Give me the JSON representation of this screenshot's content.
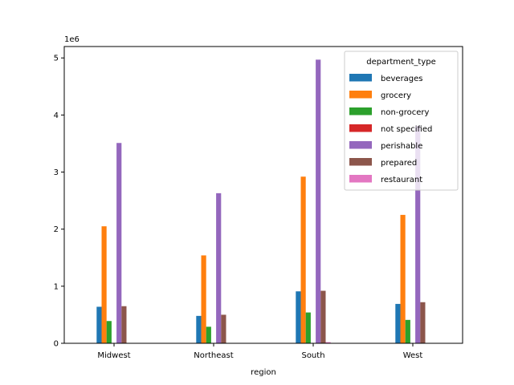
{
  "chart_data": {
    "type": "bar",
    "xlabel": "region",
    "ylabel": "",
    "offset_text": "1e6",
    "scale": 1000000,
    "ylim": [
      0,
      5200000
    ],
    "yticks": [
      0,
      1,
      2,
      3,
      4,
      5
    ],
    "grid": false,
    "legend_title": "department_type",
    "legend_position": "top-right",
    "categories": [
      "Midwest",
      "Northeast",
      "South",
      "West"
    ],
    "series": [
      {
        "name": "beverages",
        "color": "#1f77b4",
        "values": [
          640000,
          480000,
          910000,
          690000
        ]
      },
      {
        "name": "grocery",
        "color": "#ff7f0e",
        "values": [
          2050000,
          1540000,
          2920000,
          2250000
        ]
      },
      {
        "name": "non-grocery",
        "color": "#2ca02c",
        "values": [
          390000,
          290000,
          540000,
          410000
        ]
      },
      {
        "name": "not specified",
        "color": "#d62728",
        "values": [
          5000,
          4000,
          7000,
          5000
        ]
      },
      {
        "name": "perishable",
        "color": "#9467bd",
        "values": [
          3510000,
          2630000,
          4970000,
          3810000
        ]
      },
      {
        "name": "prepared",
        "color": "#8c564b",
        "values": [
          650000,
          500000,
          920000,
          720000
        ]
      },
      {
        "name": "restaurant",
        "color": "#e377c2",
        "values": [
          0,
          0,
          20000,
          0
        ]
      }
    ]
  }
}
